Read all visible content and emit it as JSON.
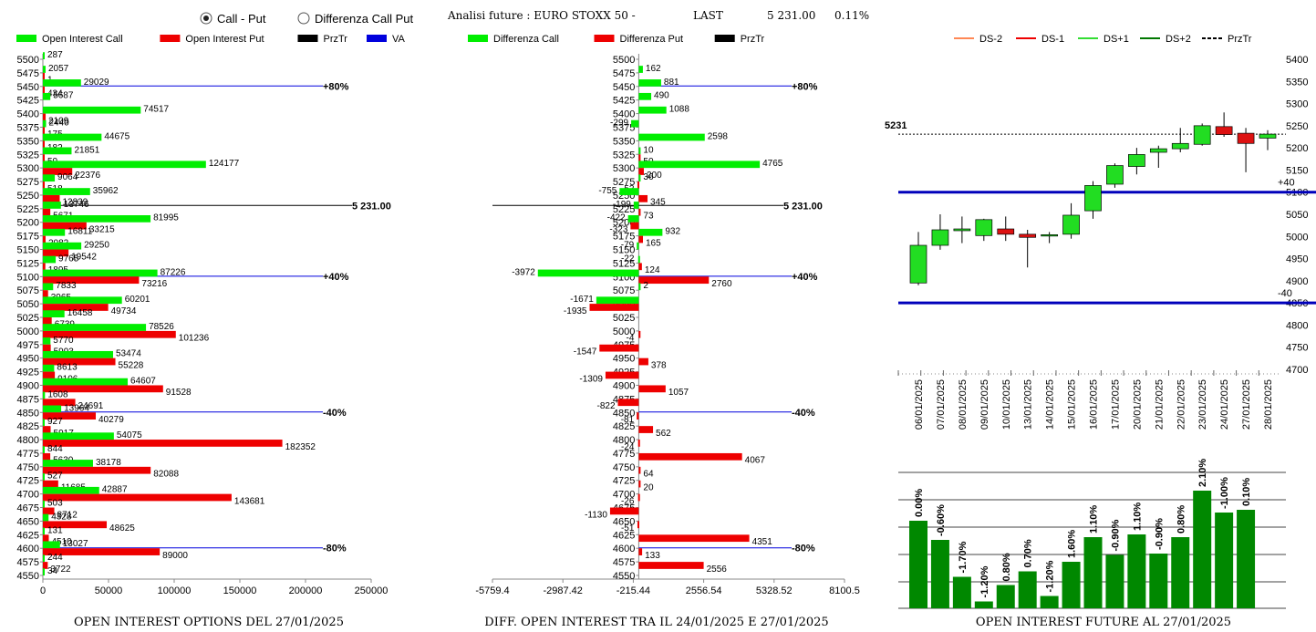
{
  "header": {
    "radio_call_put": "Call - Put",
    "radio_diff": "Differenza Call Put",
    "selected": "call_put",
    "title": "Analisi future : EURO STOXX 50 -",
    "last_label": "LAST",
    "last_value": "5 231.00",
    "last_change": "0.11%"
  },
  "colors": {
    "call": "#00ee00",
    "put": "#ee0000",
    "przTr": "#000000",
    "va": "#0000dd",
    "bull_candle": "#22dd22",
    "bear_candle": "#dd1111",
    "bar_green": "#008800"
  },
  "chart_data": [
    {
      "type": "bar",
      "orientation": "horizontal",
      "title": "OPEN INTEREST OPTIONS DEL 27/01/2025",
      "legend": [
        "Open Interest Call",
        "Open Interest Put",
        "PrzTr",
        "VA"
      ],
      "legend_placement": "top",
      "xlim": [
        0,
        250000
      ],
      "xticks": [
        "0",
        "50000",
        "100000",
        "150000",
        "200000",
        "250000"
      ],
      "strikes": [
        5500,
        5475,
        5450,
        5425,
        5400,
        5375,
        5350,
        5325,
        5300,
        5275,
        5250,
        5225,
        5200,
        5175,
        5150,
        5125,
        5100,
        5075,
        5050,
        5025,
        5000,
        4975,
        4950,
        4925,
        4900,
        4875,
        4850,
        4825,
        4800,
        4775,
        4750,
        4725,
        4700,
        4675,
        4650,
        4625,
        4600,
        4575,
        4550
      ],
      "call": [
        287,
        2057,
        29029,
        5687,
        74517,
        2440,
        44675,
        21851,
        124177,
        9064,
        35962,
        13746,
        81995,
        16811,
        29250,
        9765,
        87226,
        7833,
        60201,
        16458,
        78526,
        5770,
        53474,
        8613,
        64607,
        1608,
        13964,
        927,
        54075,
        844,
        38178,
        527,
        42887,
        503,
        4328,
        131,
        13027,
        244,
        34
      ],
      "put": [
        null,
        1,
        434,
        null,
        2109,
        175,
        182,
        50,
        22376,
        518,
        12839,
        5671,
        33215,
        2082,
        19542,
        1895,
        73216,
        3965,
        49734,
        6739,
        101236,
        5993,
        55228,
        9106,
        91528,
        24691,
        40279,
        5917,
        182352,
        5630,
        82088,
        11685,
        143681,
        8712,
        48625,
        4510,
        89000,
        3722,
        null
      ],
      "price_line": {
        "value": 5231,
        "label": "5 231.00"
      },
      "va_lines": [
        {
          "strike": 5450,
          "label": "+80%"
        },
        {
          "strike": 5100,
          "label": "+40%"
        },
        {
          "strike": 4850,
          "label": "-40%"
        },
        {
          "strike": 4600,
          "label": "-80%"
        }
      ]
    },
    {
      "type": "bar",
      "orientation": "horizontal",
      "title": "DIFF. OPEN INTEREST TRA IL 24/01/2025 E 27/01/2025",
      "legend": [
        "Differenza Call",
        "Differenza Put",
        "PrzTr"
      ],
      "legend_placement": "top",
      "xlim": [
        -5759.4,
        8100.5
      ],
      "xticks": [
        "-5759.4",
        "-2987.42",
        "-215.44",
        "2556.54",
        "5328.52",
        "8100.5"
      ],
      "strikes": [
        5500,
        5475,
        5450,
        5425,
        5400,
        5375,
        5350,
        5325,
        5300,
        5275,
        5250,
        5225,
        5200,
        5175,
        5150,
        5125,
        5100,
        5075,
        5050,
        5025,
        5000,
        4975,
        4950,
        4925,
        4900,
        4875,
        4850,
        4825,
        4800,
        4775,
        4750,
        4725,
        4700,
        4675,
        4650,
        4625,
        4600,
        4575,
        4550
      ],
      "call": [
        null,
        162,
        881,
        490,
        1088,
        -299,
        2598,
        10,
        4765,
        36,
        -755,
        -199,
        -422,
        932,
        -79,
        -22,
        -3972,
        2,
        -1671,
        null,
        null,
        null,
        null,
        null,
        null,
        null,
        null,
        null,
        null,
        null,
        null,
        null,
        null,
        null,
        null,
        null,
        null,
        null,
        null
      ],
      "put": [
        null,
        null,
        null,
        null,
        null,
        null,
        null,
        50,
        200,
        -52,
        345,
        73,
        -323,
        165,
        null,
        124,
        2760,
        null,
        -1935,
        null,
        -4,
        -1547,
        378,
        -1309,
        1057,
        -822,
        -81,
        562,
        -24,
        4067,
        64,
        20,
        -26,
        -1130,
        -51,
        4351,
        133,
        2556,
        null
      ],
      "price_line": {
        "value": 5231,
        "label": "5 231.00"
      },
      "va_lines": [
        {
          "strike": 5450,
          "label": "+80%"
        },
        {
          "strike": 5100,
          "label": "+40%"
        },
        {
          "strike": 4850,
          "label": "-40%"
        },
        {
          "strike": 4600,
          "label": "-80%"
        }
      ]
    },
    {
      "type": "candlestick",
      "title": "OPEN INTEREST FUTURE AL 27/01/2025",
      "legend": [
        "DS-2",
        "DS-1",
        "DS+1",
        "DS+2",
        "PrzTr"
      ],
      "legend_placement": "top",
      "ylim": [
        4700,
        5400
      ],
      "yticks": [
        "5400",
        "5350",
        "5300",
        "5250",
        "5200",
        "5150",
        "5100",
        "5050",
        "5000",
        "4950",
        "4900",
        "4850",
        "4800",
        "4750",
        "4700"
      ],
      "dates": [
        "06/01/2025",
        "07/01/2025",
        "08/01/2025",
        "09/01/2025",
        "10/01/2025",
        "13/01/2025",
        "14/01/2025",
        "15/01/2025",
        "16/01/2025",
        "17/01/2025",
        "20/01/2025",
        "21/01/2025",
        "22/01/2025",
        "23/01/2025",
        "24/01/2025",
        "27/01/2025",
        "28/01/2025"
      ],
      "candles": [
        {
          "o": 4895,
          "h": 5010,
          "l": 4890,
          "c": 4980
        },
        {
          "o": 4980,
          "h": 5050,
          "l": 4970,
          "c": 5015
        },
        {
          "o": 5013,
          "h": 5045,
          "l": 4985,
          "c": 5017
        },
        {
          "o": 5002,
          "h": 5040,
          "l": 4990,
          "c": 5038
        },
        {
          "o": 5017,
          "h": 5045,
          "l": 4990,
          "c": 5005
        },
        {
          "o": 5005,
          "h": 5015,
          "l": 4930,
          "c": 4998
        },
        {
          "o": 5002,
          "h": 5010,
          "l": 4985,
          "c": 5004
        },
        {
          "o": 5005,
          "h": 5075,
          "l": 4995,
          "c": 5048
        },
        {
          "o": 5058,
          "h": 5125,
          "l": 5040,
          "c": 5115
        },
        {
          "o": 5118,
          "h": 5165,
          "l": 5110,
          "c": 5160
        },
        {
          "o": 5158,
          "h": 5200,
          "l": 5140,
          "c": 5185
        },
        {
          "o": 5190,
          "h": 5205,
          "l": 5155,
          "c": 5198
        },
        {
          "o": 5198,
          "h": 5245,
          "l": 5190,
          "c": 5210
        },
        {
          "o": 5208,
          "h": 5255,
          "l": 5205,
          "c": 5250
        },
        {
          "o": 5248,
          "h": 5280,
          "l": 5225,
          "c": 5230
        },
        {
          "o": 5233,
          "h": 5245,
          "l": 5145,
          "c": 5210
        },
        {
          "o": 5222,
          "h": 5240,
          "l": 5195,
          "c": 5231
        }
      ],
      "price_line": {
        "value": 5231,
        "label": "5231"
      },
      "band_upper": {
        "value": 5100,
        "label": "+40"
      },
      "band_lower": {
        "value": 4850,
        "label": "-40"
      }
    },
    {
      "type": "bar",
      "title": "",
      "categories": [
        "06/01/2025",
        "07/01/2025",
        "08/01/2025",
        "09/01/2025",
        "10/01/2025",
        "13/01/2025",
        "14/01/2025",
        "15/01/2025",
        "16/01/2025",
        "17/01/2025",
        "20/01/2025",
        "21/01/2025",
        "22/01/2025",
        "23/01/2025",
        "24/01/2025",
        "27/01/2025",
        "28/01/2025"
      ],
      "values": [
        3.2,
        2.5,
        1.15,
        0.25,
        0.85,
        1.35,
        0.45,
        1.7,
        2.6,
        1.95,
        2.7,
        2.0,
        2.6,
        4.3,
        3.5,
        3.6,
        null
      ],
      "labels": [
        "0.00%",
        "-0.60%",
        "-1.70%",
        "-1.20%",
        "0.80%",
        "0.70%",
        "-1.20%",
        "1.60%",
        "1.10%",
        "-0.90%",
        "1.10%",
        "-0.90%",
        "0.80%",
        "2.10%",
        "-1.00%",
        "0.10%",
        ""
      ],
      "grid": true
    }
  ]
}
